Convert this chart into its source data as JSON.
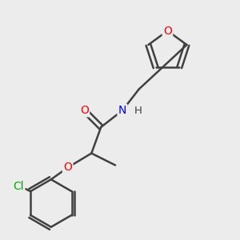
{
  "bg_color": "#ececec",
  "bond_color": "#404040",
  "atom_colors": {
    "O": "#ff0000",
    "N": "#0000ff",
    "Cl": "#00aa00",
    "C": "#404040",
    "H": "#404040"
  },
  "line_width": 1.8,
  "font_size": 10,
  "figsize": [
    3.0,
    3.0
  ],
  "dpi": 100
}
